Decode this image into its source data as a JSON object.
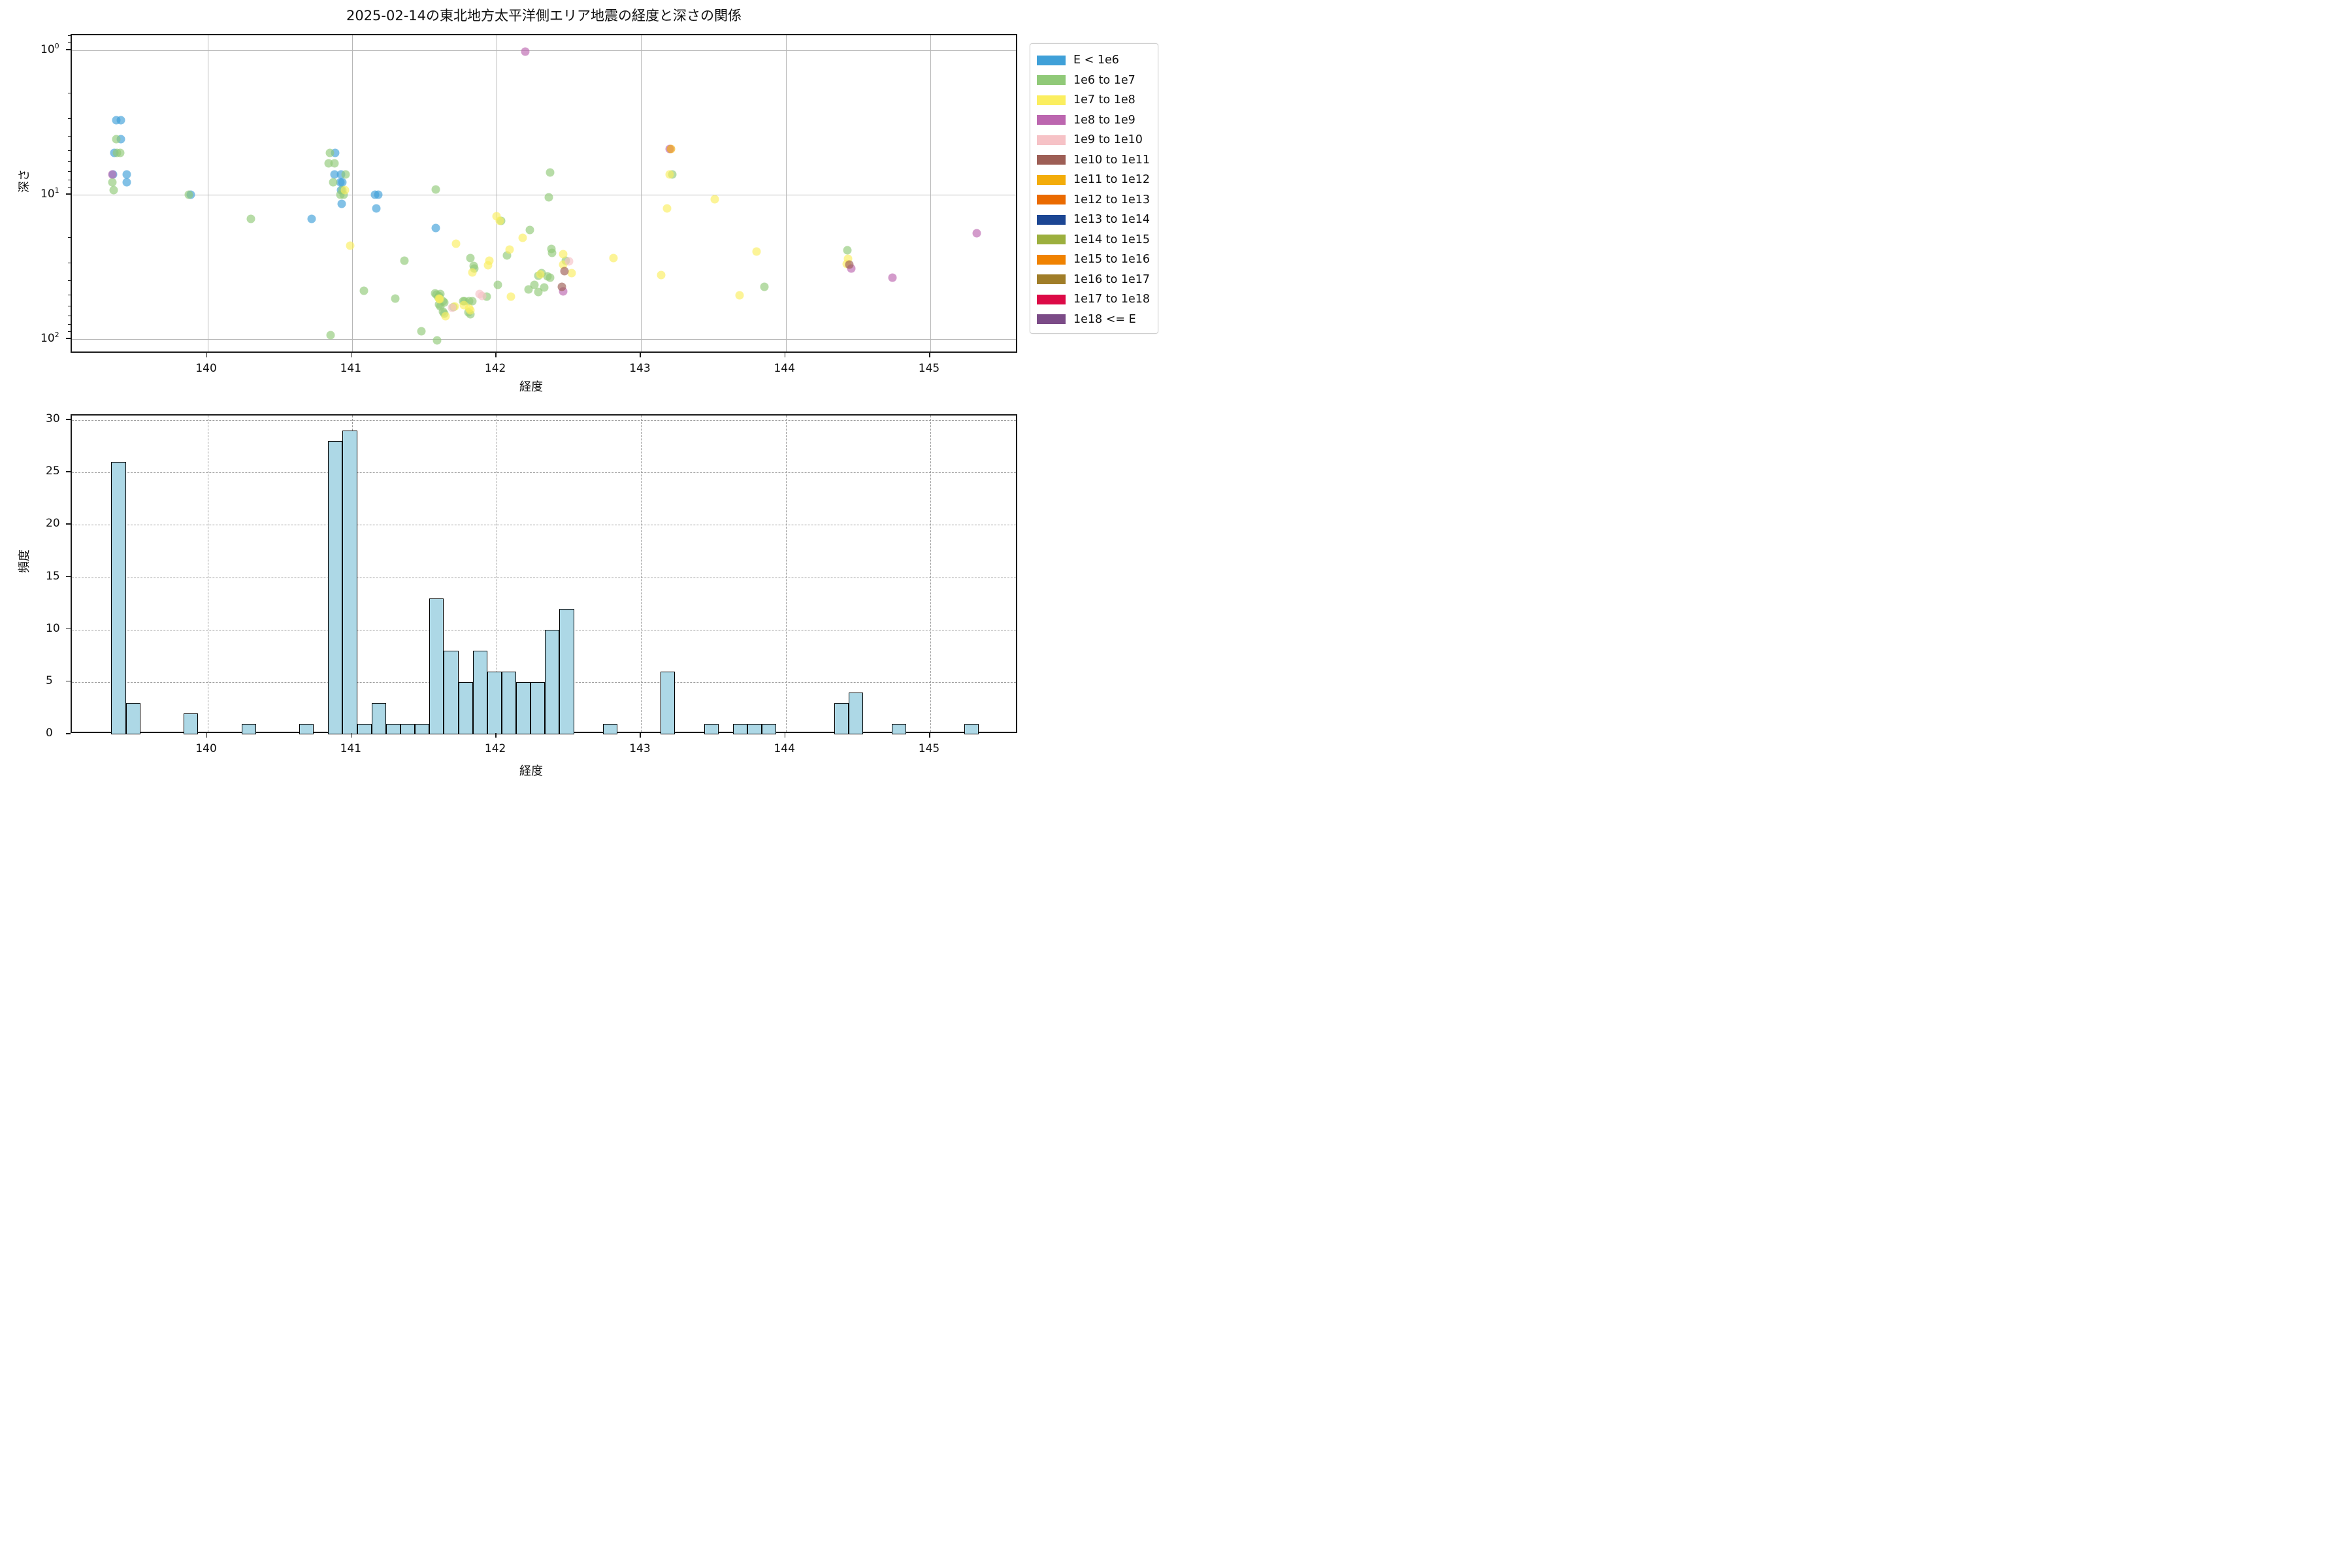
{
  "figure": {
    "title": "2025-02-14の東北地方太平洋側エリア地震の経度と深さの関係"
  },
  "chart_data": [
    {
      "type": "scatter",
      "title": "2025-02-14の東北地方太平洋側エリア地震の経度と深さの関係",
      "xlabel": "経度",
      "ylabel": "深さ",
      "xlim": [
        139.062,
        145.61
      ],
      "ylim_log10": [
        -0.104,
        2.102
      ],
      "y_scale": "log-inverted",
      "xticks": [
        140,
        141,
        142,
        143,
        144,
        145
      ],
      "yticks": [
        1,
        10,
        100
      ],
      "y_minor_ticks": [
        0.8,
        0.9,
        2,
        3,
        4,
        5,
        6,
        7,
        8,
        9,
        20,
        30,
        40,
        50,
        60,
        70,
        80,
        90
      ],
      "grid": "solid",
      "legend_position": "outside-right",
      "legend": [
        {
          "label": "E < 1e6",
          "color": "#3FA0D8"
        },
        {
          "label": "1e6 to 1e7",
          "color": "#90C978"
        },
        {
          "label": "1e7 to 1e8",
          "color": "#FBEE5F"
        },
        {
          "label": "1e8 to 1e9",
          "color": "#BC66AF"
        },
        {
          "label": "1e9 to 1e10",
          "color": "#F6C2C6"
        },
        {
          "label": "1e10 to 1e11",
          "color": "#9D5E55"
        },
        {
          "label": "1e11 to 1e12",
          "color": "#F3AC0A"
        },
        {
          "label": "1e12 to 1e13",
          "color": "#EA6A00"
        },
        {
          "label": "1e13 to 1e14",
          "color": "#1C4693"
        },
        {
          "label": "1e14 to 1e15",
          "color": "#9CAF3E"
        },
        {
          "label": "1e15 to 1e16",
          "color": "#F08200"
        },
        {
          "label": "1e16 to 1e17",
          "color": "#A07D28"
        },
        {
          "label": "1e17 to 1e18",
          "color": "#DC0A46"
        },
        {
          "label": "1e18 <= E",
          "color": "#7B4B87"
        }
      ],
      "series": [
        {
          "name": "E < 1e6",
          "legend_index": 0,
          "points": [
            [
              139.37,
              3.05
            ],
            [
              139.4,
              3.05
            ],
            [
              139.4,
              4.1
            ],
            [
              139.355,
              5.15
            ],
            [
              139.345,
              7.2
            ],
            [
              139.44,
              7.2
            ],
            [
              139.44,
              8.2
            ],
            [
              139.885,
              10.0
            ],
            [
              140.72,
              14.7
            ],
            [
              140.885,
              5.1
            ],
            [
              140.88,
              7.2
            ],
            [
              140.925,
              7.2
            ],
            [
              140.92,
              8.2
            ],
            [
              140.935,
              8.2
            ],
            [
              140.925,
              9.3
            ],
            [
              140.93,
              11.6
            ],
            [
              141.16,
              10.0
            ],
            [
              141.18,
              10.0
            ],
            [
              141.17,
              12.4
            ],
            [
              141.58,
              17
            ]
          ]
        },
        {
          "name": "1e6 to 1e7",
          "legend_index": 1,
          "points": [
            [
              139.37,
              4.1
            ],
            [
              139.375,
              5.15
            ],
            [
              139.395,
              5.15
            ],
            [
              139.34,
              8.2
            ],
            [
              139.35,
              9.3
            ],
            [
              139.87,
              10.0
            ],
            [
              140.3,
              14.7
            ],
            [
              140.845,
              5.1
            ],
            [
              140.84,
              6.05
            ],
            [
              140.88,
              6.05
            ],
            [
              140.955,
              7.2
            ],
            [
              140.87,
              8.2
            ],
            [
              140.935,
              9.3
            ],
            [
              140.92,
              10.0
            ],
            [
              140.94,
              10.0
            ],
            [
              140.85,
              94
            ],
            [
              141.08,
              46
            ],
            [
              141.3,
              52
            ],
            [
              141.36,
              28.5
            ],
            [
              141.48,
              88
            ],
            [
              141.58,
              9.2
            ],
            [
              141.59,
              101.5
            ],
            [
              141.575,
              48
            ],
            [
              141.585,
              49
            ],
            [
              141.6,
              50
            ],
            [
              141.595,
              51
            ],
            [
              141.61,
              48.5
            ],
            [
              141.63,
              54.2
            ],
            [
              141.64,
              55.6
            ],
            [
              141.6,
              57.4
            ],
            [
              141.61,
              58.9
            ],
            [
              141.63,
              64.5
            ],
            [
              141.64,
              66.1
            ],
            [
              141.7,
              59.9
            ],
            [
              141.77,
              54.7
            ],
            [
              141.78,
              54.7
            ],
            [
              141.81,
              54.4
            ],
            [
              141.83,
              54.4
            ],
            [
              141.805,
              65.3
            ],
            [
              141.82,
              67.1
            ],
            [
              141.82,
              27.3
            ],
            [
              141.84,
              31
            ],
            [
              141.845,
              32.2
            ],
            [
              141.93,
              50.5
            ],
            [
              142.03,
              15.1
            ],
            [
              142.01,
              42
            ],
            [
              142.07,
              26.2
            ],
            [
              142.22,
              45
            ],
            [
              142.26,
              41.9
            ],
            [
              142.29,
              47.1
            ],
            [
              142.33,
              43.7
            ],
            [
              142.23,
              17.5
            ],
            [
              142.29,
              36.3
            ],
            [
              142.31,
              34.8
            ],
            [
              142.35,
              36.6
            ],
            [
              142.37,
              37.5
            ],
            [
              142.36,
              10.4
            ],
            [
              142.37,
              7.0
            ],
            [
              142.38,
              23.7
            ],
            [
              142.385,
              25.1
            ],
            [
              142.48,
              28.6
            ],
            [
              143.215,
              7.2
            ],
            [
              143.85,
              43.5
            ],
            [
              144.425,
              24.2
            ]
          ]
        },
        {
          "name": "1e7 to 1e8",
          "legend_index": 2,
          "points": [
            [
              140.95,
              9.3
            ],
            [
              140.985,
              22.4
            ],
            [
              141.6,
              52
            ],
            [
              141.605,
              52.5
            ],
            [
              141.645,
              68.9
            ],
            [
              141.71,
              58.9
            ],
            [
              141.72,
              21.8
            ],
            [
              141.775,
              58.2
            ],
            [
              141.81,
              61.3
            ],
            [
              141.82,
              63.1
            ],
            [
              141.83,
              34.3
            ],
            [
              141.94,
              30.7
            ],
            [
              141.95,
              28.6
            ],
            [
              142.0,
              14.0
            ],
            [
              142.02,
              15.2
            ],
            [
              142.09,
              23.9
            ],
            [
              142.1,
              50.5
            ],
            [
              142.18,
              19.8
            ],
            [
              142.3,
              35.5
            ],
            [
              142.46,
              25.7
            ],
            [
              142.46,
              30.5
            ],
            [
              142.52,
              34.8
            ],
            [
              142.81,
              27.5
            ],
            [
              143.195,
              7.2
            ],
            [
              143.18,
              12.4
            ],
            [
              143.14,
              36
            ],
            [
              143.51,
              10.7
            ],
            [
              143.68,
              49.5
            ],
            [
              143.8,
              24.8
            ],
            [
              144.43,
              27.7
            ],
            [
              144.42,
              30.0
            ]
          ]
        },
        {
          "name": "1e8 to 1e9",
          "legend_index": 3,
          "points": [
            [
              139.34,
              7.2
            ],
            [
              142.2,
              1.02
            ],
            [
              142.46,
              46.4
            ],
            [
              143.195,
              4.8
            ],
            [
              144.455,
              32.4
            ],
            [
              144.74,
              37.6
            ],
            [
              145.32,
              18.5
            ]
          ]
        },
        {
          "name": "1e9 to 1e10",
          "legend_index": 4,
          "points": [
            [
              141.69,
              60.4
            ],
            [
              141.88,
              48.4
            ],
            [
              141.9,
              49.9
            ],
            [
              142.5,
              28.8
            ]
          ]
        },
        {
          "name": "1e10 to 1e11",
          "legend_index": 5,
          "points": [
            [
              142.47,
              33.7
            ],
            [
              142.45,
              43.2
            ],
            [
              144.44,
              30.3
            ]
          ]
        },
        {
          "name": "1e11 to 1e12",
          "legend_index": 6,
          "points": [
            [
              143.205,
              4.8
            ]
          ]
        }
      ]
    },
    {
      "type": "bar",
      "xlabel": "経度",
      "ylabel": "頻度",
      "xlim": [
        139.062,
        145.61
      ],
      "ylim": [
        0,
        30.45
      ],
      "xticks": [
        140,
        141,
        142,
        143,
        144,
        145
      ],
      "yticks": [
        0,
        5,
        10,
        15,
        20,
        25,
        30
      ],
      "grid": "dashed",
      "bar_color": "#ADD8E6",
      "bar_edge": "#000000",
      "bin_width": 0.1,
      "bars": [
        [
          139.335,
          26
        ],
        [
          139.435,
          3
        ],
        [
          139.835,
          2
        ],
        [
          140.235,
          1
        ],
        [
          140.635,
          1
        ],
        [
          140.835,
          28
        ],
        [
          140.935,
          29
        ],
        [
          141.035,
          1
        ],
        [
          141.135,
          3
        ],
        [
          141.235,
          1
        ],
        [
          141.335,
          1
        ],
        [
          141.435,
          1
        ],
        [
          141.535,
          13
        ],
        [
          141.635,
          8
        ],
        [
          141.735,
          5
        ],
        [
          141.835,
          8
        ],
        [
          141.935,
          6
        ],
        [
          142.035,
          6
        ],
        [
          142.135,
          5
        ],
        [
          142.235,
          5
        ],
        [
          142.335,
          10
        ],
        [
          142.435,
          12
        ],
        [
          142.735,
          1
        ],
        [
          143.135,
          6
        ],
        [
          143.435,
          1
        ],
        [
          143.635,
          1
        ],
        [
          143.735,
          1
        ],
        [
          143.835,
          1
        ],
        [
          144.335,
          3
        ],
        [
          144.435,
          4
        ],
        [
          144.735,
          1
        ],
        [
          145.235,
          1
        ]
      ]
    }
  ]
}
